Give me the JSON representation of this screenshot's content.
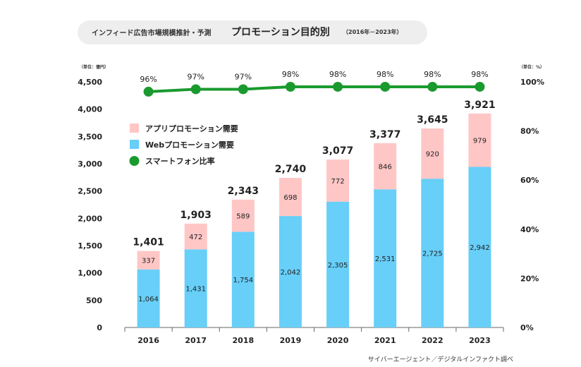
{
  "header": {
    "subtitle": "インフィード広告市場規模推計・予測",
    "title": "プロモーション目的別",
    "period": "（2016年－2023年）"
  },
  "units": {
    "left": "（単位：億円）",
    "right": "（単位：%）"
  },
  "source": "サイバーエージェント／デジタルインファクト調べ",
  "colors": {
    "app": "#ffc6c6",
    "web": "#67cff8",
    "line": "#1a9a2e"
  },
  "chart_data": {
    "type": "bar",
    "stacked": true,
    "categories": [
      "2016",
      "2017",
      "2018",
      "2019",
      "2020",
      "2021",
      "2022",
      "2023"
    ],
    "series": [
      {
        "name": "Webプロモーション需要",
        "values": [
          1064,
          1431,
          1754,
          2042,
          2305,
          2531,
          2725,
          2942
        ]
      },
      {
        "name": "アプリプロモーション需要",
        "values": [
          337,
          472,
          589,
          698,
          772,
          846,
          920,
          979
        ]
      }
    ],
    "totals": [
      1401,
      1903,
      2343,
      2740,
      3077,
      3377,
      3645,
      3921
    ],
    "total_labels": [
      "1,401",
      "1,903",
      "2,343",
      "2,740",
      "3,077",
      "3,377",
      "3,645",
      "3,921"
    ],
    "web_labels": [
      "1,064",
      "1,431",
      "1,754",
      "2,042",
      "2,305",
      "2,531",
      "2,725",
      "2,942"
    ],
    "app_labels": [
      "337",
      "472",
      "589",
      "698",
      "772",
      "846",
      "920",
      "979"
    ],
    "line_series": {
      "name": "スマートフォン比率",
      "values": [
        96,
        97,
        97,
        98,
        98,
        98,
        98,
        98
      ]
    },
    "line_labels": [
      "96%",
      "97%",
      "97%",
      "98%",
      "98%",
      "98%",
      "98%",
      "98%"
    ],
    "ylim": [
      0,
      4500
    ],
    "yticks": [
      "0",
      "500",
      "1,000",
      "1,500",
      "2,000",
      "2,500",
      "3,000",
      "3,500",
      "4,000",
      "4,500"
    ],
    "y2lim": [
      0,
      100
    ],
    "y2ticks": [
      "0%",
      "20%",
      "40%",
      "60%",
      "80%",
      "100%"
    ],
    "legend": [
      "アプリプロモーション需要",
      "Webプロモーション需要",
      "スマートフォン比率"
    ],
    "legend_position": "top-left",
    "grid": false
  }
}
